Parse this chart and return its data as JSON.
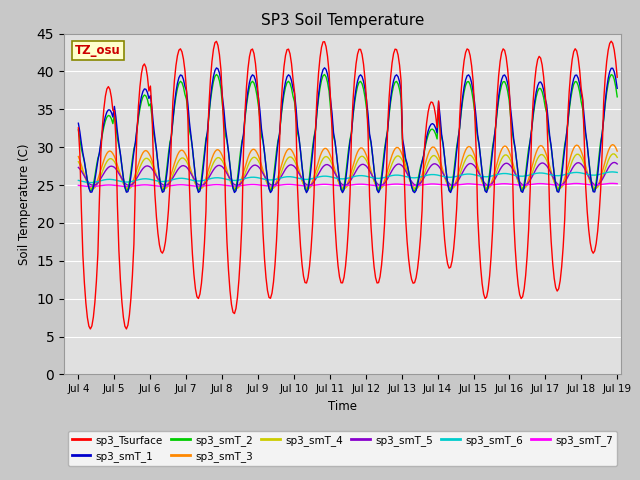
{
  "title": "SP3 Soil Temperature",
  "xlabel": "Time",
  "ylabel": "Soil Temperature (C)",
  "ylim": [
    0,
    45
  ],
  "yticks": [
    0,
    5,
    10,
    15,
    20,
    25,
    30,
    35,
    40,
    45
  ],
  "xlim_days": [
    3.6,
    19.1
  ],
  "xtick_labels": [
    "Jul 4",
    "Jul 5",
    "Jul 6",
    "Jul 7",
    "Jul 8",
    "Jul 9",
    "Jul 10",
    "Jul 11",
    "Jul 12",
    "Jul 13",
    "Jul 14",
    "Jul 15",
    "Jul 16",
    "Jul 17",
    "Jul 18",
    "Jul 19"
  ],
  "xtick_positions": [
    4,
    5,
    6,
    7,
    8,
    9,
    10,
    11,
    12,
    13,
    14,
    15,
    16,
    17,
    18,
    19
  ],
  "timezone_label": "TZ_osu",
  "colors": {
    "sp3_Tsurface": "#ff0000",
    "sp3_smT_1": "#0000cc",
    "sp3_smT_2": "#00cc00",
    "sp3_smT_3": "#ff8800",
    "sp3_smT_4": "#cccc00",
    "sp3_smT_5": "#8800cc",
    "sp3_smT_6": "#00cccc",
    "sp3_smT_7": "#ff00ff"
  },
  "fig_bg": "#c8c8c8",
  "plot_bg": "#e0e0e0",
  "grid_color": "#ffffff"
}
